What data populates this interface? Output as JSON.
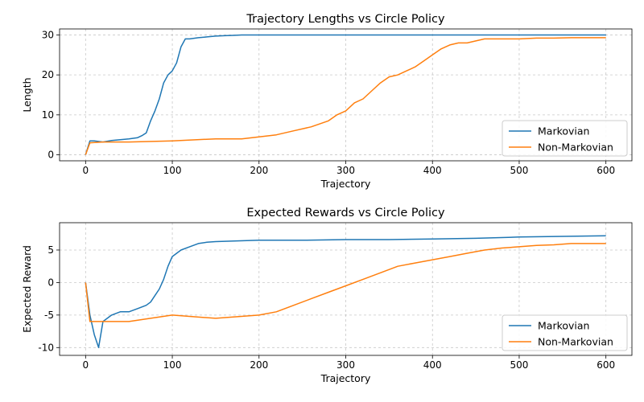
{
  "chart_data": [
    {
      "type": "line",
      "title": "Trajectory Lengths vs Circle Policy",
      "xlabel": "Trajectory",
      "ylabel": "Length",
      "xlim": [
        -30,
        630
      ],
      "ylim": [
        -1.5,
        31.5
      ],
      "xticks": [
        0,
        100,
        200,
        300,
        400,
        500,
        600
      ],
      "yticks": [
        0,
        10,
        20,
        30
      ],
      "grid": true,
      "legend_position": "lower-right",
      "series": [
        {
          "name": "Markovian",
          "color": "#1f77b4",
          "x": [
            0,
            5,
            10,
            20,
            30,
            40,
            50,
            60,
            65,
            70,
            75,
            80,
            85,
            90,
            95,
            100,
            105,
            110,
            115,
            120,
            130,
            140,
            150,
            160,
            170,
            180,
            190,
            200,
            250,
            300,
            350,
            400,
            450,
            500,
            550,
            600
          ],
          "y": [
            0,
            3.5,
            3.5,
            3.2,
            3.6,
            3.8,
            4.0,
            4.3,
            4.8,
            5.5,
            8.5,
            11,
            14,
            18,
            20,
            21,
            23,
            27,
            29,
            29,
            29.3,
            29.5,
            29.7,
            29.8,
            29.9,
            30,
            30,
            30,
            30,
            30,
            30,
            30,
            30,
            30,
            30,
            30
          ]
        },
        {
          "name": "Non-Markovian",
          "color": "#ff7f0e",
          "x": [
            0,
            5,
            20,
            50,
            100,
            150,
            180,
            200,
            220,
            240,
            260,
            280,
            290,
            300,
            310,
            320,
            330,
            340,
            350,
            360,
            370,
            380,
            390,
            400,
            410,
            420,
            430,
            440,
            450,
            460,
            470,
            480,
            490,
            500,
            520,
            540,
            560,
            580,
            600
          ],
          "y": [
            0,
            3.0,
            3.2,
            3.2,
            3.5,
            4.0,
            4.0,
            4.5,
            5.0,
            6.0,
            7.0,
            8.5,
            10,
            11,
            13,
            14,
            16,
            18,
            19.5,
            20,
            21,
            22,
            23.5,
            25,
            26.5,
            27.5,
            28,
            28,
            28.5,
            29,
            29,
            29,
            29,
            29,
            29.2,
            29.2,
            29.3,
            29.3,
            29.3
          ]
        }
      ]
    },
    {
      "type": "line",
      "title": "Expected Rewards vs Circle Policy",
      "xlabel": "Trajectory",
      "ylabel": "Expected Reward",
      "xlim": [
        -30,
        630
      ],
      "ylim": [
        -11.2,
        9.2
      ],
      "xticks": [
        0,
        100,
        200,
        300,
        400,
        500,
        600
      ],
      "yticks": [
        -10,
        -5,
        0,
        5
      ],
      "grid": true,
      "legend_position": "lower-right",
      "series": [
        {
          "name": "Markovian",
          "color": "#1f77b4",
          "x": [
            0,
            5,
            10,
            15,
            20,
            30,
            40,
            50,
            60,
            70,
            75,
            80,
            85,
            90,
            95,
            100,
            110,
            120,
            130,
            140,
            150,
            200,
            250,
            300,
            350,
            400,
            450,
            500,
            550,
            600
          ],
          "y": [
            0,
            -5,
            -8,
            -10,
            -6,
            -5,
            -4.5,
            -4.5,
            -4,
            -3.5,
            -3,
            -2,
            -1,
            0.5,
            2.5,
            4,
            5,
            5.5,
            6,
            6.2,
            6.3,
            6.5,
            6.5,
            6.6,
            6.6,
            6.7,
            6.8,
            7,
            7.1,
            7.2
          ]
        },
        {
          "name": "Non-Markovian",
          "color": "#ff7f0e",
          "x": [
            0,
            5,
            20,
            50,
            100,
            150,
            200,
            220,
            240,
            260,
            280,
            300,
            320,
            340,
            360,
            380,
            400,
            420,
            440,
            460,
            480,
            500,
            520,
            540,
            560,
            580,
            600
          ],
          "y": [
            0,
            -6,
            -6,
            -6,
            -5,
            -5.5,
            -5,
            -4.5,
            -3.5,
            -2.5,
            -1.5,
            -0.5,
            0.5,
            1.5,
            2.5,
            3,
            3.5,
            4,
            4.5,
            5,
            5.3,
            5.5,
            5.7,
            5.8,
            6,
            6,
            6
          ]
        }
      ]
    }
  ]
}
